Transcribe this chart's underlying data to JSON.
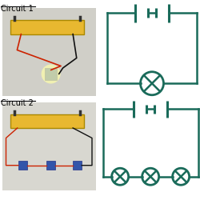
{
  "teal": "#1a6b5a",
  "lw": 1.8,
  "font_size": 7,
  "photo1_colors": {
    "bg": "#d0cfc8",
    "battery_color": "#e8b830",
    "wire_red": "#cc2200",
    "wire_black": "#111111",
    "bulb_glow": "#ffffaa",
    "component_blue": "#3355aa"
  },
  "photo2_colors": {
    "bg": "#d8d7d0",
    "battery_color": "#e8b830",
    "wire_red": "#cc2200",
    "component_blue": "#3355aa"
  }
}
